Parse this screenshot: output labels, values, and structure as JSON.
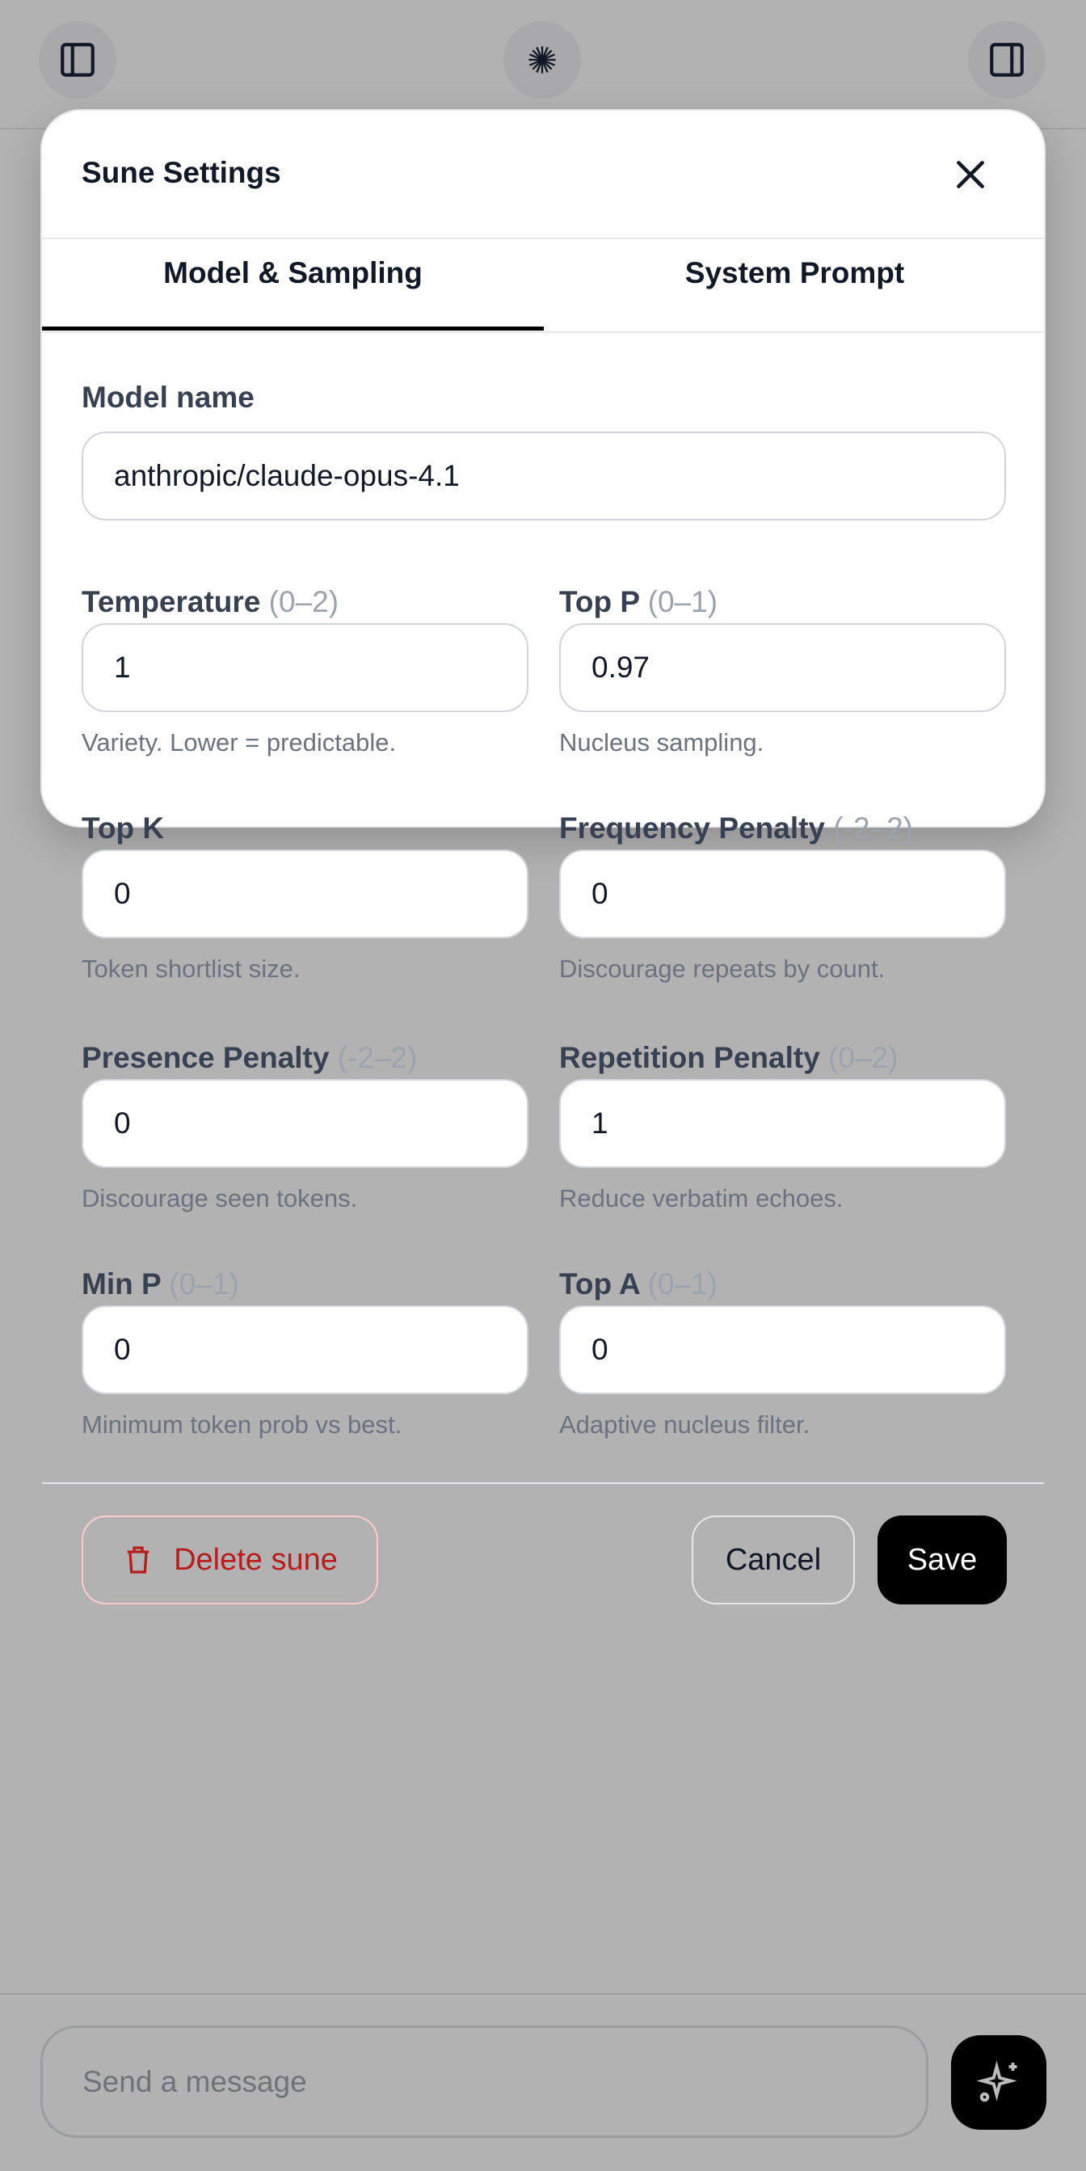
{
  "topbar": {
    "left_icon": "sidebar-left-icon",
    "center_icon": "starburst-icon",
    "right_icon": "sidebar-right-icon"
  },
  "dialog": {
    "title": "Sune Settings",
    "tabs": [
      {
        "label": "Model & Sampling",
        "active": true
      },
      {
        "label": "System Prompt",
        "active": false
      }
    ],
    "model_name": {
      "label": "Model name",
      "value": "anthropic/claude-opus-4.1"
    },
    "fields": [
      {
        "label": "Temperature",
        "range": "(0–2)",
        "value": "1",
        "help": "Variety. Lower = predictable."
      },
      {
        "label": "Top P",
        "range": "(0–1)",
        "value": "0.97",
        "help": "Nucleus sampling."
      },
      {
        "label": "Top K",
        "range": "",
        "value": "0",
        "help": "Token shortlist size."
      },
      {
        "label": "Frequency Penalty",
        "range": "(-2–2)",
        "value": "0",
        "help": "Discourage repeats by count."
      },
      {
        "label": "Presence Penalty",
        "range": "(-2–2)",
        "value": "0",
        "help": "Discourage seen tokens."
      },
      {
        "label": "Repetition Penalty",
        "range": "(0–2)",
        "value": "1",
        "help": "Reduce verbatim echoes."
      },
      {
        "label": "Min P",
        "range": "(0–1)",
        "value": "0",
        "help": "Minimum token prob vs best."
      },
      {
        "label": "Top A",
        "range": "(0–1)",
        "value": "0",
        "help": "Adaptive nucleus filter."
      }
    ],
    "delete_label": "Delete sune",
    "cancel_label": "Cancel",
    "save_label": "Save",
    "colors": {
      "danger": "#b91c1c",
      "primary": "#000000"
    }
  },
  "composer": {
    "placeholder": "Send a message",
    "send_icon": "sparkles-icon"
  }
}
